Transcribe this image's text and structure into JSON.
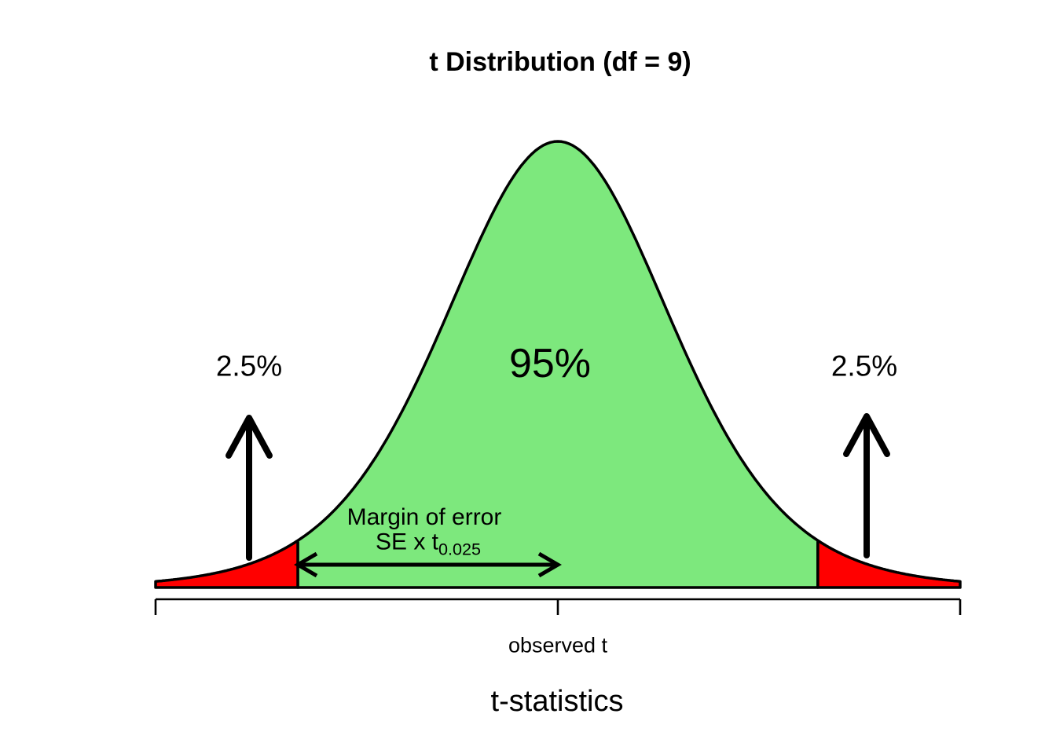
{
  "chart_data": {
    "type": "area",
    "title": "t Distribution (df = 9)",
    "xlabel": "t-statistics",
    "distribution": "t",
    "df": 9,
    "x_range": [
      -3.5,
      3.5
    ],
    "critical_value": 2.262,
    "peak_density": 0.388,
    "grid": false,
    "legend": false,
    "regions": [
      {
        "name": "left-tail",
        "t_range": [
          -3.5,
          -2.262
        ],
        "area": 0.025,
        "label": "2.5%",
        "fill": "#FF0000"
      },
      {
        "name": "center",
        "t_range": [
          -2.262,
          2.262
        ],
        "area": 0.95,
        "label": "95%",
        "fill": "#7DE87D"
      },
      {
        "name": "right-tail",
        "t_range": [
          2.262,
          3.5
        ],
        "area": 0.025,
        "label": "2.5%",
        "fill": "#FF0000"
      }
    ],
    "annotations": {
      "margin_line1": "Margin of error",
      "margin_se": "SE x t",
      "margin_sub": "0.025",
      "observed": "observed t"
    },
    "colors": {
      "tail_fill": "#FF0000",
      "center_fill": "#7DE87D",
      "line": "#000000",
      "background": "#FFFFFF"
    }
  }
}
